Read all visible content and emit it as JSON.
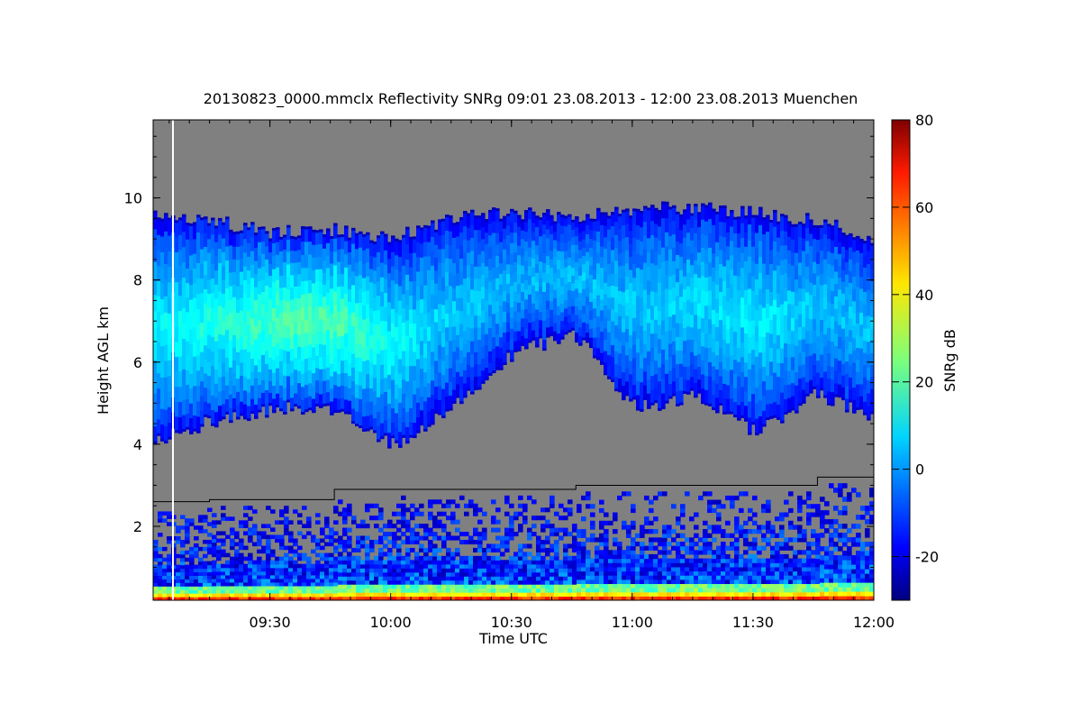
{
  "chart_data": {
    "type": "heatmap",
    "title": "20130823_0000.mmclx Reflectivity SNRg   09:01 23.08.2013 - 12:00 23.08.2013 Muenchen",
    "xlabel": "Time UTC",
    "ylabel": "Height AGL km",
    "x_range": [
      "09:01",
      "12:00"
    ],
    "x_ticks": [
      "09:30",
      "10:00",
      "10:30",
      "11:00",
      "11:30",
      "12:00"
    ],
    "y_range": [
      0.2,
      11.9
    ],
    "y_ticks": [
      "2",
      "4",
      "6",
      "8",
      "10"
    ],
    "colorbar": {
      "label": "SNRg dB",
      "range": [
        -30,
        80
      ],
      "ticks": [
        "-20",
        "0",
        "20",
        "40",
        "60",
        "80"
      ],
      "colormap": "jet"
    },
    "background_color": "#808080",
    "cloud_layer": {
      "time_min": [
        0,
        15,
        30,
        45,
        60,
        75,
        90,
        105,
        120,
        135,
        150,
        165,
        179
      ],
      "top_km": [
        9.6,
        9.4,
        9.1,
        9.2,
        9.0,
        9.5,
        9.6,
        9.5,
        9.7,
        9.7,
        9.6,
        9.4,
        9.0
      ],
      "base_km": [
        4.1,
        4.6,
        4.9,
        4.9,
        4.0,
        5.0,
        6.3,
        6.7,
        4.9,
        5.2,
        4.3,
        5.3,
        4.6
      ],
      "snr_db": [
        10,
        15,
        20,
        21,
        12,
        6,
        4,
        5,
        6,
        8,
        10,
        6,
        5
      ]
    },
    "boundary_layer_line": {
      "time_min": [
        0,
        14,
        14,
        45,
        45,
        105,
        105,
        165,
        165,
        179
      ],
      "height_km": [
        2.6,
        2.6,
        2.65,
        2.65,
        2.9,
        2.9,
        3.0,
        3.0,
        3.2,
        3.2
      ]
    },
    "missing_data_marker_time": "09:06"
  }
}
